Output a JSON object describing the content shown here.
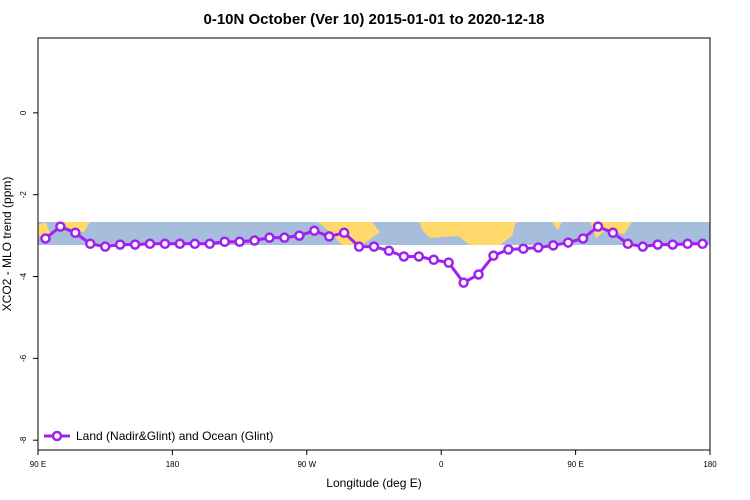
{
  "chart_data": {
    "type": "line",
    "title": "0-10N October (Ver 10)   2015-01-01 to 2020-12-18",
    "x_label": "Longitude (deg E)",
    "y_label": "XCO2 - MLO trend (ppm)",
    "x": [
      95,
      105,
      115,
      125,
      135,
      145,
      155,
      165,
      175,
      185,
      195,
      205,
      215,
      225,
      235,
      245,
      255,
      265,
      275,
      285,
      295,
      305,
      315,
      325,
      335,
      345,
      355,
      365,
      375,
      385,
      395,
      405,
      415,
      425,
      435,
      445,
      455,
      465,
      475,
      485,
      495,
      505,
      515,
      525,
      535
    ],
    "series": [
      {
        "name": "Land (Nadir&Glint) and Ocean (Glint)",
        "color": "#a020f0",
        "values": [
          -3.07,
          -2.78,
          -2.93,
          -3.2,
          -3.27,
          -3.22,
          -3.22,
          -3.2,
          -3.2,
          -3.2,
          -3.2,
          -3.2,
          -3.15,
          -3.15,
          -3.12,
          -3.05,
          -3.05,
          -3.0,
          -2.88,
          -3.02,
          -2.93,
          -3.27,
          -3.27,
          -3.37,
          -3.51,
          -3.51,
          -3.59,
          -3.66,
          -4.15,
          -3.95,
          -3.49,
          -3.34,
          -3.32,
          -3.29,
          -3.24,
          -3.17,
          -3.07,
          -2.78,
          -2.93,
          -3.2,
          -3.27,
          -3.22,
          -3.22,
          -3.2,
          -3.2
        ]
      }
    ],
    "xlim": [
      90,
      540
    ],
    "xticks": [
      {
        "value": 90,
        "label": "90 E"
      },
      {
        "value": 180,
        "label": "180"
      },
      {
        "value": 270,
        "label": "90 W"
      },
      {
        "value": 360,
        "label": "0"
      },
      {
        "value": 450,
        "label": "90 E"
      },
      {
        "value": 540,
        "label": "180"
      }
    ],
    "ylim": [
      -8.24,
      1.83
    ],
    "yticks": [
      0,
      -2,
      -4,
      -6,
      -8
    ],
    "legend": "bottom-left"
  }
}
